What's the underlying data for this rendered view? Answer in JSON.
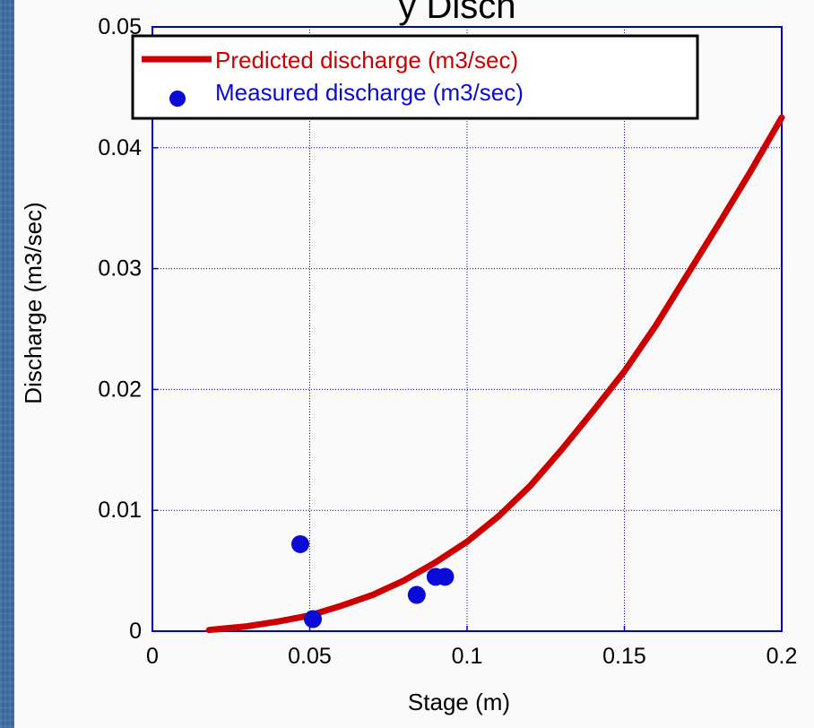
{
  "chart_data": {
    "type": "scatter",
    "title": "y Disch",
    "xlabel": "Stage (m)",
    "ylabel": "Discharge (m3/sec)",
    "xlim": [
      0,
      0.2
    ],
    "ylim": [
      0,
      0.05
    ],
    "x_ticks": [
      "0",
      "0.05",
      "0.1",
      "0.15",
      "0.2"
    ],
    "y_ticks": [
      "0",
      "0.01",
      "0.02",
      "0.03",
      "0.04",
      "0.05"
    ],
    "grid": true,
    "legend_position": "top-left",
    "series": [
      {
        "name": "Predicted discharge (m3/sec)",
        "kind": "line",
        "color": "#cc0000",
        "x": [
          0.018,
          0.03,
          0.04,
          0.05,
          0.06,
          0.07,
          0.08,
          0.09,
          0.1,
          0.11,
          0.12,
          0.13,
          0.14,
          0.15,
          0.16,
          0.17,
          0.18,
          0.19,
          0.2
        ],
        "y": [
          0.0001,
          0.0004,
          0.0008,
          0.0013,
          0.0021,
          0.003,
          0.0042,
          0.0057,
          0.0074,
          0.0095,
          0.012,
          0.015,
          0.0182,
          0.0215,
          0.0253,
          0.0295,
          0.0337,
          0.038,
          0.0425
        ]
      },
      {
        "name": "Measured discharge (m3/sec)",
        "kind": "scatter",
        "color": "#0a0ad6",
        "x": [
          0.047,
          0.051,
          0.084,
          0.09,
          0.093
        ],
        "y": [
          0.0072,
          0.001,
          0.003,
          0.0045,
          0.0045
        ]
      }
    ]
  }
}
